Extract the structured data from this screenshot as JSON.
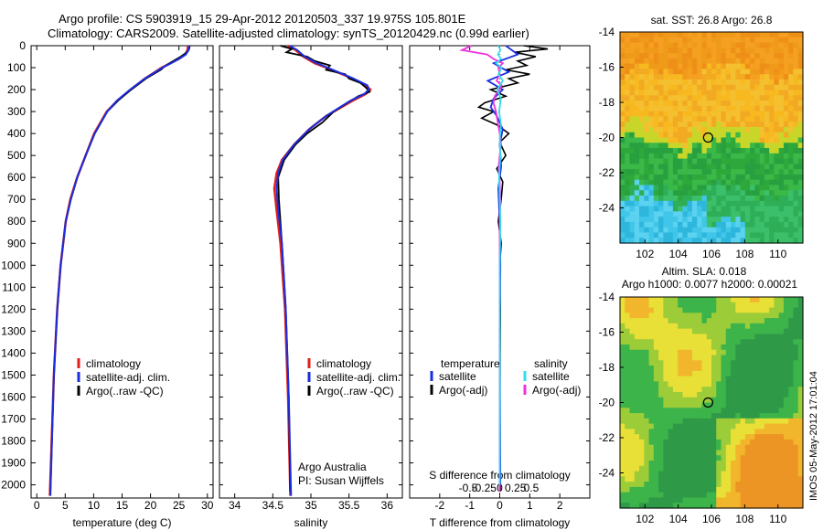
{
  "header": {
    "line1": "Argo profile: CS 5903919_15 29-Apr-2012 20120503_337 19.975S 105.801E",
    "line2": "Climatology: CARS2009. Satellite-adjusted climatology: synTS_20120429.nc (0.99d earlier)"
  },
  "colors": {
    "climatology": "#e0201a",
    "satellite": "#1a2ee0",
    "argo": "#000000",
    "sal_satellite": "#33ddee",
    "sal_argo": "#ee33dd"
  },
  "depth_axis": {
    "min": 0,
    "max": 2060,
    "ticks": [
      0,
      100,
      200,
      300,
      400,
      500,
      600,
      700,
      800,
      900,
      1000,
      1100,
      1200,
      1300,
      1400,
      1500,
      1600,
      1700,
      1800,
      1900,
      2000
    ]
  },
  "chart_data": [
    {
      "type": "line",
      "id": "temperature",
      "xlabel": "temperature (deg C)",
      "xlim": [
        -1,
        31
      ],
      "xticks": [
        0,
        5,
        10,
        15,
        20,
        25,
        30
      ],
      "legend": [
        "climatology",
        "satellite-adj. clim.",
        "Argo(..raw -QC)"
      ],
      "series": [
        {
          "name": "climatology",
          "depth": [
            0,
            20,
            40,
            60,
            80,
            100,
            150,
            200,
            250,
            300,
            400,
            500,
            600,
            700,
            800,
            1000,
            1200,
            1500,
            2050
          ],
          "values": [
            26.6,
            26.5,
            26.1,
            25.0,
            23.5,
            22.0,
            19.0,
            16.5,
            14.2,
            12.3,
            10.1,
            8.6,
            7.1,
            5.9,
            5.1,
            4.2,
            3.6,
            3.0,
            2.3
          ]
        },
        {
          "name": "satellite",
          "depth": [
            0,
            20,
            40,
            60,
            80,
            100,
            150,
            200,
            250,
            300,
            400,
            500,
            600,
            700,
            800,
            1000,
            1200,
            1500,
            2050
          ],
          "values": [
            26.8,
            26.7,
            26.2,
            25.0,
            23.6,
            22.1,
            19.0,
            16.4,
            14.1,
            12.4,
            10.2,
            8.6,
            7.1,
            6.0,
            5.1,
            4.2,
            3.6,
            3.0,
            2.4
          ]
        },
        {
          "name": "Argo",
          "depth": [
            0,
            15,
            30,
            50,
            70,
            90,
            110,
            150,
            200,
            250,
            300,
            400,
            500,
            600,
            700,
            800,
            1000,
            1200,
            1500,
            2030
          ],
          "values": [
            26.9,
            26.8,
            26.4,
            25.3,
            24.0,
            22.7,
            21.8,
            19.2,
            16.6,
            14.3,
            12.4,
            10.2,
            8.6,
            7.1,
            6.0,
            5.1,
            4.2,
            3.6,
            3.0,
            2.4
          ]
        }
      ]
    },
    {
      "type": "line",
      "id": "salinity",
      "xlabel": "salinity",
      "xlim": [
        33.8,
        36.2
      ],
      "xticks": [
        34,
        34.5,
        35,
        35.5,
        36
      ],
      "legend": [
        "climatology",
        "satellite-adj. clim.",
        "Argo(..raw -QC)"
      ],
      "annotations": [
        "Argo Australia",
        "PI: Susan Wijffels"
      ],
      "series": [
        {
          "name": "climatology",
          "depth": [
            0,
            20,
            50,
            80,
            100,
            150,
            180,
            200,
            220,
            250,
            280,
            320,
            380,
            450,
            520,
            580,
            650,
            750,
            900,
            1200,
            1600,
            2050
          ],
          "values": [
            34.7,
            34.8,
            34.9,
            35.05,
            35.2,
            35.55,
            35.72,
            35.78,
            35.72,
            35.55,
            35.4,
            35.2,
            34.98,
            34.78,
            34.62,
            34.55,
            34.52,
            34.55,
            34.6,
            34.66,
            34.7,
            34.73
          ]
        },
        {
          "name": "satellite",
          "depth": [
            0,
            20,
            50,
            80,
            100,
            150,
            180,
            200,
            220,
            250,
            280,
            320,
            380,
            450,
            520,
            580,
            650,
            750,
            900,
            1200,
            1600,
            2050
          ],
          "values": [
            34.72,
            34.82,
            34.92,
            35.08,
            35.22,
            35.56,
            35.74,
            35.76,
            35.7,
            35.52,
            35.38,
            35.2,
            34.98,
            34.78,
            34.63,
            34.57,
            34.55,
            34.57,
            34.62,
            34.67,
            34.71,
            34.74
          ]
        },
        {
          "name": "Argo",
          "depth": [
            0,
            15,
            30,
            50,
            70,
            90,
            110,
            130,
            150,
            170,
            190,
            210,
            230,
            260,
            300,
            350,
            400,
            450,
            520,
            600,
            700,
            900,
            1200,
            1600,
            2030
          ],
          "values": [
            34.6,
            34.75,
            34.68,
            34.95,
            35.05,
            35.25,
            35.2,
            35.45,
            35.5,
            35.65,
            35.72,
            35.77,
            35.62,
            35.48,
            35.3,
            35.15,
            34.95,
            34.8,
            34.65,
            34.57,
            34.58,
            34.62,
            34.67,
            34.71,
            34.73
          ]
        }
      ]
    },
    {
      "type": "line",
      "id": "difference",
      "xlabel": "T difference from climatology",
      "x2label": "S difference from climatology",
      "xlim": [
        -3,
        3
      ],
      "xticks": [
        -2,
        -1,
        0,
        1,
        2
      ],
      "x2ticks": [
        -0.5,
        -0.25,
        0,
        0.25,
        0.5
      ],
      "x2tick_labels": [
        "-0.5",
        "-0.25",
        "0",
        "0.25",
        "0.5"
      ],
      "legend_groups": [
        {
          "title": "temperature",
          "items": [
            "satellite",
            "Argo(-adj)"
          ]
        },
        {
          "title": "salinity",
          "items": [
            "satellite",
            "Argo(-adj)"
          ]
        }
      ],
      "series": [
        {
          "name": "temperature satellite",
          "depth": [
            0,
            40,
            80,
            120,
            160,
            200,
            240,
            280,
            320,
            380,
            450,
            550,
            650,
            800,
            1000,
            1300,
            1600,
            2000
          ],
          "values": [
            0.2,
            0.6,
            -0.2,
            0.3,
            -0.4,
            0.1,
            -0.2,
            -0.3,
            -0.1,
            0.1,
            0.0,
            0.05,
            -0.05,
            0.0,
            0.02,
            0.0,
            0.01,
            0.02
          ]
        },
        {
          "name": "temperature Argo(-adj)",
          "depth": [
            0,
            15,
            30,
            50,
            70,
            90,
            110,
            130,
            150,
            170,
            200,
            230,
            260,
            280,
            300,
            330,
            360,
            400,
            440,
            500,
            560,
            620,
            700,
            800,
            900,
            1000,
            1200,
            1500,
            1800,
            2030
          ],
          "values": [
            0.8,
            1.6,
            0.5,
            1.2,
            0.6,
            0.9,
            0.2,
            1.0,
            0.3,
            0.6,
            -0.3,
            0.2,
            -0.5,
            -0.7,
            -0.2,
            -0.6,
            -0.1,
            0.3,
            0.0,
            0.2,
            -0.1,
            0.1,
            0.05,
            -0.05,
            0.05,
            0.0,
            0.02,
            0.01,
            0.0,
            0.02
          ]
        },
        {
          "name": "salinity satellite",
          "depth": [
            0,
            20,
            40,
            60,
            80,
            100,
            130,
            160,
            200,
            240,
            300,
            360,
            420,
            500,
            600,
            700,
            800,
            1000,
            1300,
            1600,
            2000
          ],
          "values": [
            -0.02,
            0.01,
            -0.03,
            0.02,
            -0.06,
            0.03,
            -0.02,
            0.05,
            -0.04,
            0.02,
            -0.01,
            0.02,
            0.0,
            0.01,
            -0.01,
            0.0,
            0.01,
            0.0,
            0.0,
            0.0,
            0.0
          ]
        },
        {
          "name": "salinity Argo(-adj)",
          "depth": [
            0,
            20,
            40,
            60,
            80,
            100,
            130,
            160,
            180,
            200,
            230,
            260,
            300,
            350,
            400,
            450,
            500,
            560,
            620,
            700,
            800,
            1000,
            1300,
            1600,
            2030
          ],
          "values": [
            -0.45,
            -0.6,
            -0.2,
            -0.1,
            0.05,
            -0.02,
            0.0,
            -0.05,
            0.03,
            0.0,
            -0.08,
            -0.1,
            -0.06,
            -0.03,
            0.0,
            0.02,
            0.0,
            -0.02,
            0.0,
            0.01,
            0.0,
            0.0,
            0.0,
            0.0,
            0.0
          ]
        }
      ]
    },
    {
      "type": "heatmap",
      "id": "sst_map",
      "title": "sat. SST: 26.8 Argo: 26.8",
      "xlim": [
        100.5,
        111.5
      ],
      "ylim": [
        -26,
        -14
      ],
      "xticks": [
        102,
        104,
        106,
        108,
        110
      ],
      "yticks": [
        -14,
        -16,
        -18,
        -20,
        -22,
        -24
      ],
      "marker": {
        "lon": 105.8,
        "lat": -20
      }
    },
    {
      "type": "heatmap",
      "id": "sla_map",
      "title": "Altim. SLA: 0.018",
      "subtitle": "Argo h1000: 0.0077 h2000: 0.00021",
      "xlim": [
        100.5,
        111.5
      ],
      "ylim": [
        -26,
        -14
      ],
      "xticks": [
        102,
        104,
        106,
        108,
        110
      ],
      "yticks": [
        -14,
        -16,
        -18,
        -20,
        -22,
        -24
      ],
      "marker": {
        "lon": 105.8,
        "lat": -20
      }
    }
  ],
  "footer": {
    "stamp": "IMOS 05-May-2012 17:01:04"
  }
}
